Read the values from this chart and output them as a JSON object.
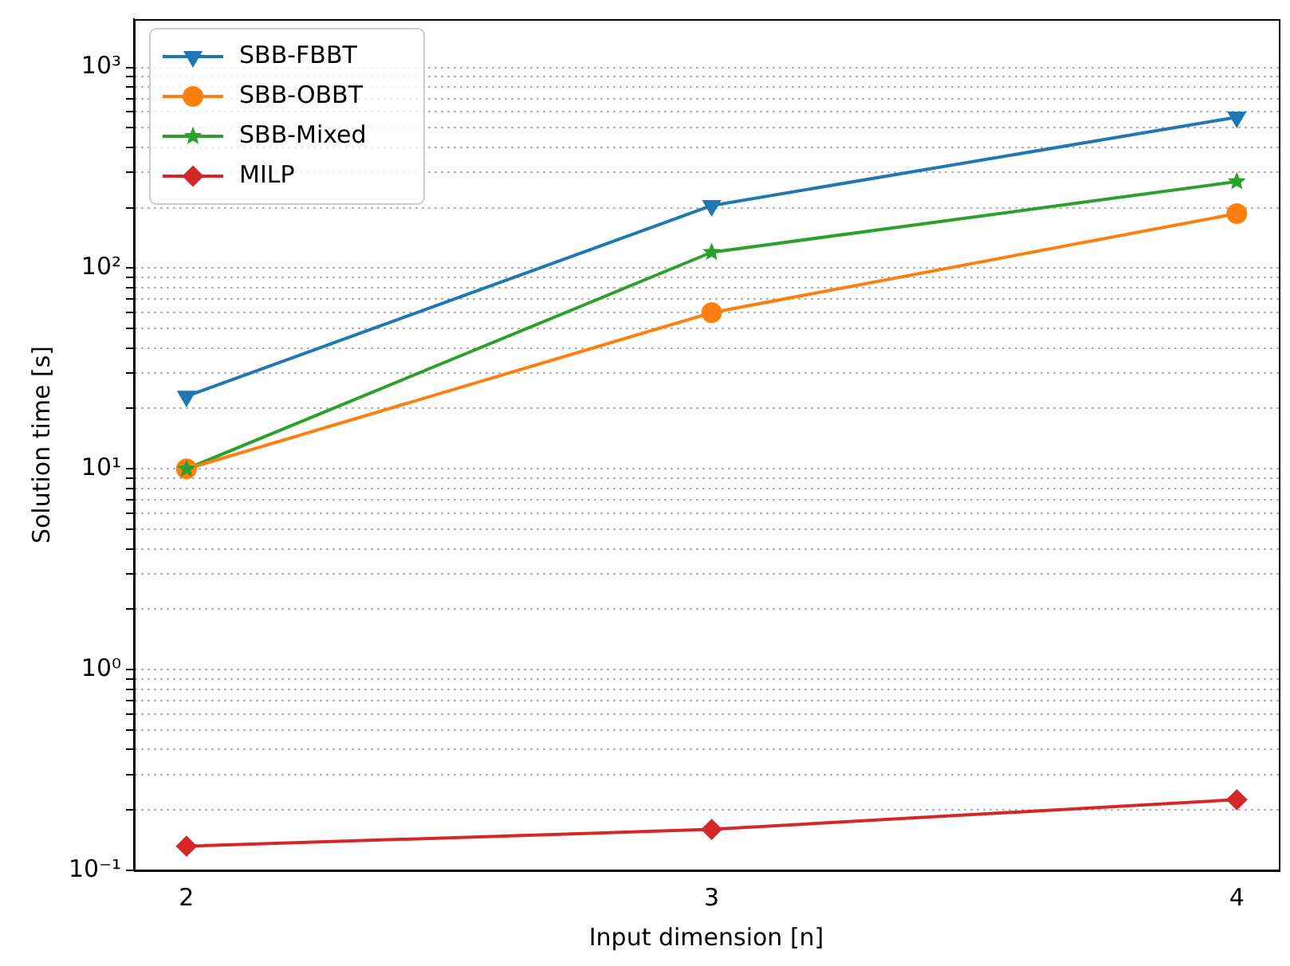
{
  "chart_data": {
    "type": "line",
    "xlabel": "Input dimension [n]",
    "ylabel": "Solution time [s]",
    "x": [
      2,
      3,
      4
    ],
    "series": [
      {
        "name": "SBB-FBBT",
        "color": "#1f77b4",
        "marker": "triangle_down",
        "values": [
          23,
          205,
          565
        ]
      },
      {
        "name": "SBB-OBBT",
        "color": "#ff7f0e",
        "marker": "circle",
        "values": [
          10,
          60,
          187
        ]
      },
      {
        "name": "SBB-Mixed",
        "color": "#2ca02c",
        "marker": "star",
        "values": [
          10,
          120,
          270
        ]
      },
      {
        "name": "MILP",
        "color": "#d62728",
        "marker": "diamond",
        "values": [
          0.132,
          0.16,
          0.225
        ]
      }
    ],
    "log": "y",
    "xlim": [
      1.9,
      4.08
    ],
    "xticks": [
      2,
      3,
      4
    ],
    "ylim": [
      0.1,
      1740
    ],
    "yticks": [
      {
        "value": 0.1,
        "label": "10⁻¹"
      },
      {
        "value": 0.2,
        "label": null
      },
      {
        "value": 0.3,
        "label": null
      },
      {
        "value": 0.4,
        "label": null
      },
      {
        "value": 0.5,
        "label": null
      },
      {
        "value": 0.6,
        "label": null
      },
      {
        "value": 0.7,
        "label": null
      },
      {
        "value": 0.8,
        "label": null
      },
      {
        "value": 0.9,
        "label": null
      },
      {
        "value": 1,
        "label": "10⁰"
      },
      {
        "value": 2,
        "label": null
      },
      {
        "value": 3,
        "label": null
      },
      {
        "value": 4,
        "label": null
      },
      {
        "value": 5,
        "label": null
      },
      {
        "value": 6,
        "label": null
      },
      {
        "value": 7,
        "label": null
      },
      {
        "value": 8,
        "label": null
      },
      {
        "value": 9,
        "label": null
      },
      {
        "value": 10,
        "label": "10¹"
      },
      {
        "value": 20,
        "label": null
      },
      {
        "value": 30,
        "label": null
      },
      {
        "value": 40,
        "label": null
      },
      {
        "value": 50,
        "label": null
      },
      {
        "value": 60,
        "label": null
      },
      {
        "value": 70,
        "label": null
      },
      {
        "value": 80,
        "label": null
      },
      {
        "value": 90,
        "label": null
      },
      {
        "value": 100,
        "label": "10²"
      },
      {
        "value": 200,
        "label": null
      },
      {
        "value": 300,
        "label": null
      },
      {
        "value": 400,
        "label": null
      },
      {
        "value": 500,
        "label": null
      },
      {
        "value": 600,
        "label": null
      },
      {
        "value": 700,
        "label": null
      },
      {
        "value": 800,
        "label": null
      },
      {
        "value": 900,
        "label": null
      },
      {
        "value": 1000,
        "label": "10³"
      }
    ],
    "grid": "y",
    "legend": "top left",
    "line_style": "solid"
  }
}
